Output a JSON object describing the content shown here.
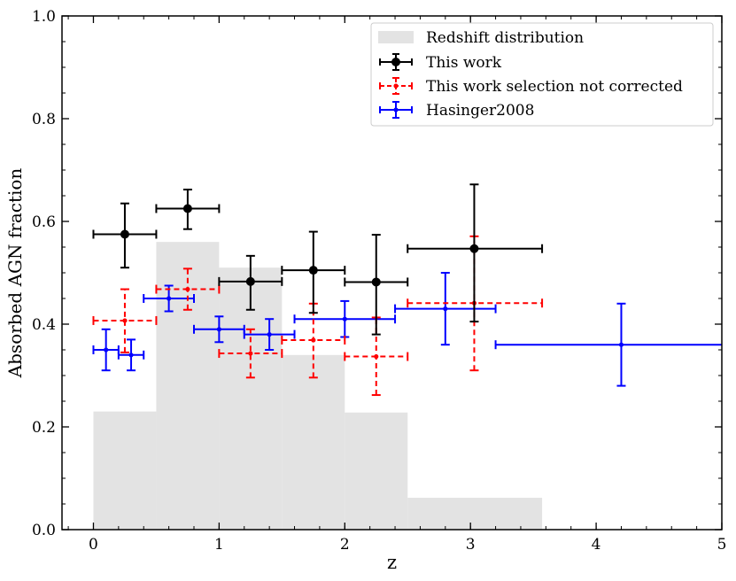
{
  "chart_data": {
    "type": "scatter",
    "xlabel": "z",
    "ylabel": "Absorbed AGN fraction",
    "xlim": [
      -0.25,
      5
    ],
    "ylim": [
      0,
      1
    ],
    "xticks": [
      0,
      1,
      2,
      3,
      4,
      5
    ],
    "xtick_labels": [
      "0",
      "1",
      "2",
      "3",
      "4",
      "5"
    ],
    "yticks": [
      0,
      0.2,
      0.4,
      0.6,
      0.8,
      1.0
    ],
    "ytick_labels": [
      "0.0",
      "0.2",
      "0.4",
      "0.6",
      "0.8",
      "1.0"
    ],
    "grid": false,
    "legend_position": "top-right",
    "histogram": {
      "name": "Redshift distribution",
      "color": "#e3e3e3",
      "bins": [
        {
          "x0": 0.0,
          "x1": 0.5,
          "value": 0.23
        },
        {
          "x0": 0.5,
          "x1": 1.0,
          "value": 0.56
        },
        {
          "x0": 1.0,
          "x1": 1.5,
          "value": 0.51
        },
        {
          "x0": 1.5,
          "x1": 2.0,
          "value": 0.34
        },
        {
          "x0": 2.0,
          "x1": 2.5,
          "value": 0.228
        },
        {
          "x0": 2.5,
          "x1": 3.57,
          "value": 0.062
        }
      ]
    },
    "series": [
      {
        "name": "This work",
        "color": "#000000",
        "style": "solid",
        "marker": "large-dot",
        "points": [
          {
            "x": 0.25,
            "y": 0.575,
            "xlo": 0.0,
            "xhi": 0.5,
            "ylo": 0.51,
            "yhi": 0.635
          },
          {
            "x": 0.75,
            "y": 0.625,
            "xlo": 0.5,
            "xhi": 1.0,
            "ylo": 0.585,
            "yhi": 0.662
          },
          {
            "x": 1.25,
            "y": 0.483,
            "xlo": 1.0,
            "xhi": 1.5,
            "ylo": 0.428,
            "yhi": 0.533
          },
          {
            "x": 1.75,
            "y": 0.505,
            "xlo": 1.5,
            "xhi": 2.0,
            "ylo": 0.422,
            "yhi": 0.58
          },
          {
            "x": 2.25,
            "y": 0.482,
            "xlo": 2.0,
            "xhi": 2.5,
            "ylo": 0.38,
            "yhi": 0.574
          },
          {
            "x": 3.03,
            "y": 0.547,
            "xlo": 2.5,
            "xhi": 3.57,
            "ylo": 0.405,
            "yhi": 0.672
          }
        ]
      },
      {
        "name": "This work selection not corrected",
        "color": "#ff0000",
        "style": "dashed",
        "marker": "small-dot",
        "points": [
          {
            "x": 0.25,
            "y": 0.407,
            "xlo": 0.0,
            "xhi": 0.5,
            "ylo": 0.345,
            "yhi": 0.468
          },
          {
            "x": 0.75,
            "y": 0.468,
            "xlo": 0.5,
            "xhi": 1.0,
            "ylo": 0.428,
            "yhi": 0.508
          },
          {
            "x": 1.25,
            "y": 0.343,
            "xlo": 1.0,
            "xhi": 1.5,
            "ylo": 0.296,
            "yhi": 0.39
          },
          {
            "x": 1.75,
            "y": 0.369,
            "xlo": 1.5,
            "xhi": 2.0,
            "ylo": 0.296,
            "yhi": 0.44
          },
          {
            "x": 2.25,
            "y": 0.337,
            "xlo": 2.0,
            "xhi": 2.5,
            "ylo": 0.262,
            "yhi": 0.413
          },
          {
            "x": 3.03,
            "y": 0.441,
            "xlo": 2.5,
            "xhi": 3.57,
            "ylo": 0.31,
            "yhi": 0.571
          }
        ]
      },
      {
        "name": "Hasinger2008",
        "color": "#0000ff",
        "style": "solid",
        "marker": "small-dot",
        "points": [
          {
            "x": 0.1,
            "y": 0.35,
            "xlo": 0.0,
            "xhi": 0.2,
            "ylo": 0.31,
            "yhi": 0.39
          },
          {
            "x": 0.3,
            "y": 0.34,
            "xlo": 0.2,
            "xhi": 0.4,
            "ylo": 0.31,
            "yhi": 0.37
          },
          {
            "x": 0.6,
            "y": 0.45,
            "xlo": 0.4,
            "xhi": 0.8,
            "ylo": 0.425,
            "yhi": 0.475
          },
          {
            "x": 1.0,
            "y": 0.39,
            "xlo": 0.8,
            "xhi": 1.2,
            "ylo": 0.365,
            "yhi": 0.415
          },
          {
            "x": 1.4,
            "y": 0.38,
            "xlo": 1.2,
            "xhi": 1.6,
            "ylo": 0.35,
            "yhi": 0.41
          },
          {
            "x": 2.0,
            "y": 0.41,
            "xlo": 1.6,
            "xhi": 2.4,
            "ylo": 0.375,
            "yhi": 0.445
          },
          {
            "x": 2.8,
            "y": 0.43,
            "xlo": 2.4,
            "xhi": 3.2,
            "ylo": 0.36,
            "yhi": 0.5
          },
          {
            "x": 4.2,
            "y": 0.36,
            "xlo": 3.2,
            "xhi": 5.2,
            "ylo": 0.28,
            "yhi": 0.44
          }
        ]
      }
    ]
  }
}
